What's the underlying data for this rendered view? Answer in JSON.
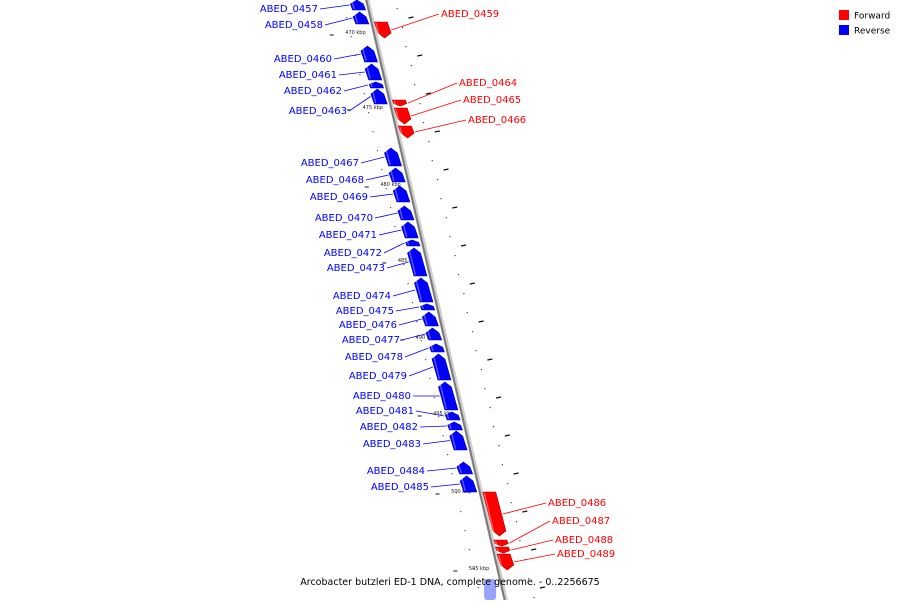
{
  "caption": "Arcobacter butzleri ED-1 DNA, complete genome. - 0..2256675",
  "colors": {
    "forward": "#ff0000",
    "reverse": "#0000ff",
    "backbone": "#808080"
  },
  "legend": [
    {
      "label": "Forward",
      "color": "#ff0000"
    },
    {
      "label": "Reverse",
      "color": "#0000ff"
    }
  ],
  "kbp_ticks": [
    {
      "kbp": 470,
      "label": "470 kbp"
    },
    {
      "kbp": 475,
      "label": "475 kbp"
    },
    {
      "kbp": 480,
      "label": "480 kbp"
    },
    {
      "kbp": 485,
      "label": "485 kbp"
    },
    {
      "kbp": 490,
      "label": "490 kbp"
    },
    {
      "kbp": 495,
      "label": "495 kbp"
    },
    {
      "kbp": 500,
      "label": "500 kbp"
    },
    {
      "kbp": 505,
      "label": "505 kbp"
    }
  ],
  "genes": [
    {
      "id": "ABED_0457",
      "strand": "reverse"
    },
    {
      "id": "ABED_0458",
      "strand": "reverse"
    },
    {
      "id": "ABED_0459",
      "strand": "forward"
    },
    {
      "id": "ABED_0460",
      "strand": "reverse"
    },
    {
      "id": "ABED_0461",
      "strand": "reverse"
    },
    {
      "id": "ABED_0462",
      "strand": "reverse"
    },
    {
      "id": "ABED_0463",
      "strand": "reverse"
    },
    {
      "id": "ABED_0464",
      "strand": "forward"
    },
    {
      "id": "ABED_0465",
      "strand": "forward"
    },
    {
      "id": "ABED_0466",
      "strand": "forward"
    },
    {
      "id": "ABED_0467",
      "strand": "reverse"
    },
    {
      "id": "ABED_0468",
      "strand": "reverse"
    },
    {
      "id": "ABED_0469",
      "strand": "reverse"
    },
    {
      "id": "ABED_0470",
      "strand": "reverse"
    },
    {
      "id": "ABED_0471",
      "strand": "reverse"
    },
    {
      "id": "ABED_0472",
      "strand": "reverse"
    },
    {
      "id": "ABED_0473",
      "strand": "reverse"
    },
    {
      "id": "ABED_0474",
      "strand": "reverse"
    },
    {
      "id": "ABED_0475",
      "strand": "reverse"
    },
    {
      "id": "ABED_0476",
      "strand": "reverse"
    },
    {
      "id": "ABED_0477",
      "strand": "reverse"
    },
    {
      "id": "ABED_0478",
      "strand": "reverse"
    },
    {
      "id": "ABED_0479",
      "strand": "reverse"
    },
    {
      "id": "ABED_0480",
      "strand": "reverse"
    },
    {
      "id": "ABED_0481",
      "strand": "reverse"
    },
    {
      "id": "ABED_0482",
      "strand": "reverse"
    },
    {
      "id": "ABED_0483",
      "strand": "reverse"
    },
    {
      "id": "ABED_0484",
      "strand": "reverse"
    },
    {
      "id": "ABED_0485",
      "strand": "reverse"
    },
    {
      "id": "ABED_0486",
      "strand": "forward"
    },
    {
      "id": "ABED_0487",
      "strand": "forward"
    },
    {
      "id": "ABED_0488",
      "strand": "forward"
    },
    {
      "id": "ABED_0489",
      "strand": "forward"
    }
  ]
}
